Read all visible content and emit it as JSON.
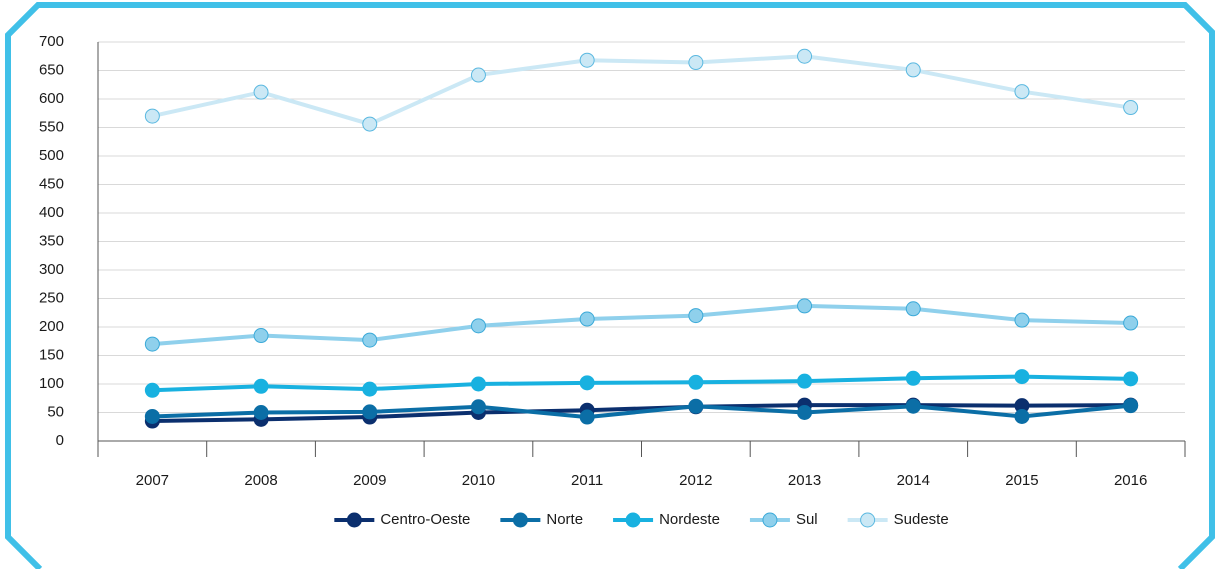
{
  "chart_data": {
    "type": "line",
    "categories": [
      "2007",
      "2008",
      "2009",
      "2010",
      "2011",
      "2012",
      "2013",
      "2014",
      "2015",
      "2016"
    ],
    "series": [
      {
        "name": "Centro-Oeste",
        "color": "#0b2f6e",
        "marker_edge": "#0b2f6e",
        "values": [
          35,
          38,
          42,
          50,
          54,
          60,
          63,
          63,
          62,
          63
        ]
      },
      {
        "name": "Norte",
        "color": "#0b6ea6",
        "marker_edge": "#0b6ea6",
        "values": [
          43,
          50,
          51,
          60,
          42,
          61,
          50,
          61,
          43,
          62
        ]
      },
      {
        "name": "Nordeste",
        "color": "#18b1e0",
        "marker_edge": "#18b1e0",
        "values": [
          89,
          96,
          91,
          100,
          102,
          103,
          105,
          110,
          113,
          109
        ]
      },
      {
        "name": "Sul",
        "color": "#8fd0ec",
        "marker_edge": "#3aa9d8",
        "values": [
          170,
          185,
          177,
          202,
          214,
          220,
          237,
          232,
          212,
          207
        ]
      },
      {
        "name": "Sudeste",
        "color": "#cbe8f5",
        "marker_edge": "#5ab8e0",
        "values": [
          570,
          612,
          556,
          642,
          668,
          664,
          675,
          651,
          613,
          585
        ]
      }
    ],
    "ylim": [
      0,
      700
    ],
    "yticks": [
      0,
      50,
      100,
      150,
      200,
      250,
      300,
      350,
      400,
      450,
      500,
      550,
      600,
      650,
      700
    ],
    "grid": true,
    "legend": "bottom"
  }
}
